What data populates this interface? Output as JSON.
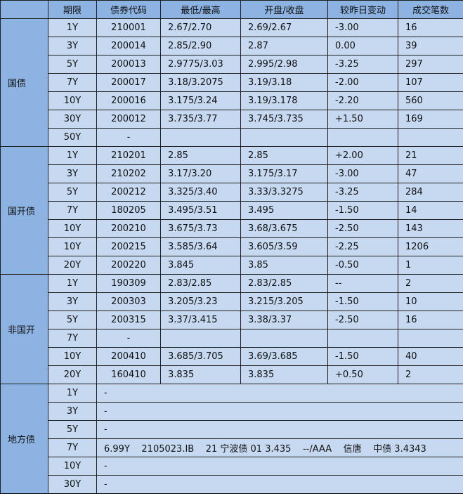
{
  "headers": {
    "term": "期限",
    "code": "债券代码",
    "low_high": "最低/最高",
    "open_close": "开盘/收盘",
    "change": "较昨日变动",
    "trades": "成交笔数"
  },
  "groups": {
    "guozhai": {
      "label": "国债",
      "rows": [
        {
          "term": "1Y",
          "code": "210001",
          "low_high": "2.67/2.70",
          "open_close": "2.69/2.67",
          "change": "-3.00",
          "trades": "16"
        },
        {
          "term": "3Y",
          "code": "200014",
          "low_high": "2.85/2.90",
          "open_close": "2.87",
          "change": "0.00",
          "trades": "39"
        },
        {
          "term": "5Y",
          "code": "200013",
          "low_high": "2.9775/3.03",
          "open_close": "2.995/2.98",
          "change": "-3.25",
          "trades": "297"
        },
        {
          "term": "7Y",
          "code": "200017",
          "low_high": "3.18/3.2075",
          "open_close": "3.19/3.18",
          "change": "-2.00",
          "trades": "107"
        },
        {
          "term": "10Y",
          "code": "200016",
          "low_high": "3.175/3.24",
          "open_close": "3.19/3.178",
          "change": "-2.20",
          "trades": "560"
        },
        {
          "term": "30Y",
          "code": "200012",
          "low_high": "3.735/3.77",
          "open_close": "3.745/3.735",
          "change": "+1.50",
          "trades": "169"
        },
        {
          "term": "50Y",
          "code": "-",
          "low_high": "",
          "open_close": "",
          "change": "",
          "trades": ""
        }
      ]
    },
    "guokaizhai": {
      "label": "国开债",
      "rows": [
        {
          "term": "1Y",
          "code": "210201",
          "low_high": "2.85",
          "open_close": "2.85",
          "change": "+2.00",
          "trades": "21"
        },
        {
          "term": "3Y",
          "code": "210202",
          "low_high": "3.17/3.20",
          "open_close": "3.175/3.17",
          "change": "-3.00",
          "trades": "47"
        },
        {
          "term": "5Y",
          "code": "200212",
          "low_high": "3.325/3.40",
          "open_close": "3.33/3.3275",
          "change": "-3.25",
          "trades": "284"
        },
        {
          "term": "7Y",
          "code": "180205",
          "low_high": "3.495/3.51",
          "open_close": "3.495",
          "change": "-1.50",
          "trades": "14"
        },
        {
          "term": "10Y",
          "code": "200210",
          "low_high": "3.675/3.73",
          "open_close": "3.68/3.675",
          "change": "-2.50",
          "trades": "143"
        },
        {
          "term": "10Y",
          "code": "200215",
          "low_high": "3.585/3.64",
          "open_close": "3.605/3.59",
          "change": "-2.25",
          "trades": "1206"
        },
        {
          "term": "20Y",
          "code": "200220",
          "low_high": "3.845",
          "open_close": "3.85",
          "change": "-0.50",
          "trades": "1"
        }
      ]
    },
    "feiguokai": {
      "label": "非国开",
      "rows": [
        {
          "term": "1Y",
          "code": "190309",
          "low_high": "2.83/2.85",
          "open_close": "2.83/2.85",
          "change": "--",
          "trades": "2"
        },
        {
          "term": "3Y",
          "code": "200303",
          "low_high": "3.205/3.23",
          "open_close": "3.215/3.205",
          "change": "-1.50",
          "trades": "10"
        },
        {
          "term": "5Y",
          "code": "200315",
          "low_high": "3.37/3.415",
          "open_close": "3.38/3.37",
          "change": "-2.50",
          "trades": "16"
        },
        {
          "term": "7Y",
          "code": "-",
          "low_high": "",
          "open_close": "",
          "change": "",
          "trades": ""
        },
        {
          "term": "10Y",
          "code": "200410",
          "low_high": "3.685/3.705",
          "open_close": "3.69/3.685",
          "change": "-1.50",
          "trades": "40"
        },
        {
          "term": "20Y",
          "code": "160410",
          "low_high": "3.835",
          "open_close": "3.835",
          "change": "+0.50",
          "trades": "2"
        }
      ]
    },
    "difangzhai": {
      "label": "地方债",
      "rows": [
        {
          "term": "1Y",
          "detail": "-"
        },
        {
          "term": "3Y",
          "detail": "-"
        },
        {
          "term": "5Y",
          "detail": "-"
        },
        {
          "term": "7Y",
          "detail": "6.99Y    2105023.IB    21 宁波债 01 3.435    --/AAA    信唐    中债 3.4343"
        },
        {
          "term": "10Y",
          "detail": "-"
        },
        {
          "term": "30Y",
          "detail": "-"
        }
      ]
    }
  }
}
